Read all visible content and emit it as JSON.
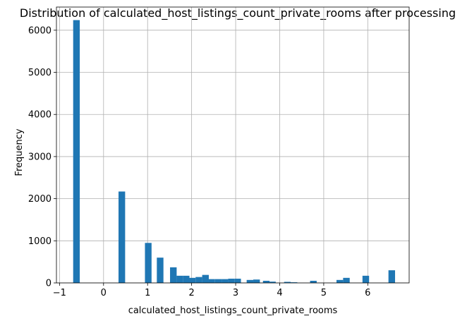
{
  "chart_data": {
    "type": "bar",
    "subtype": "histogram",
    "title": "Distribution of calculated_host_listings_count_private_rooms after processing",
    "xlabel": "calculated_host_listings_count_private_rooms",
    "ylabel": "Frequency",
    "xlim": [
      -1.07,
      6.94
    ],
    "ylim": [
      0,
      6550
    ],
    "grid": true,
    "x_ticks": [
      {
        "value": -1,
        "label": "−1"
      },
      {
        "value": 0,
        "label": "0"
      },
      {
        "value": 1,
        "label": "1"
      },
      {
        "value": 2,
        "label": "2"
      },
      {
        "value": 3,
        "label": "3"
      },
      {
        "value": 4,
        "label": "4"
      },
      {
        "value": 5,
        "label": "5"
      },
      {
        "value": 6,
        "label": "6"
      }
    ],
    "y_ticks": [
      {
        "value": 0,
        "label": "0"
      },
      {
        "value": 1000,
        "label": "1000"
      },
      {
        "value": 2000,
        "label": "2000"
      },
      {
        "value": 3000,
        "label": "3000"
      },
      {
        "value": 4000,
        "label": "4000"
      },
      {
        "value": 5000,
        "label": "5000"
      },
      {
        "value": 6000,
        "label": "6000"
      }
    ],
    "bar_color": "#1f77b4",
    "bins": [
      {
        "x0": -0.69,
        "x1": -0.54,
        "count": 6240
      },
      {
        "x0": 0.34,
        "x1": 0.49,
        "count": 2170
      },
      {
        "x0": 0.94,
        "x1": 1.09,
        "count": 950
      },
      {
        "x0": 1.21,
        "x1": 1.36,
        "count": 600
      },
      {
        "x0": 1.51,
        "x1": 1.66,
        "count": 370
      },
      {
        "x0": 1.66,
        "x1": 1.8,
        "count": 170
      },
      {
        "x0": 1.8,
        "x1": 1.95,
        "count": 170
      },
      {
        "x0": 1.95,
        "x1": 2.09,
        "count": 120
      },
      {
        "x0": 2.09,
        "x1": 2.24,
        "count": 140
      },
      {
        "x0": 2.24,
        "x1": 2.39,
        "count": 190
      },
      {
        "x0": 2.39,
        "x1": 2.53,
        "count": 90
      },
      {
        "x0": 2.53,
        "x1": 2.68,
        "count": 90
      },
      {
        "x0": 2.68,
        "x1": 2.83,
        "count": 90
      },
      {
        "x0": 2.83,
        "x1": 2.97,
        "count": 100
      },
      {
        "x0": 2.97,
        "x1": 3.12,
        "count": 100
      },
      {
        "x0": 3.25,
        "x1": 3.4,
        "count": 70
      },
      {
        "x0": 3.4,
        "x1": 3.55,
        "count": 80
      },
      {
        "x0": 3.62,
        "x1": 3.77,
        "count": 50
      },
      {
        "x0": 3.77,
        "x1": 3.91,
        "count": 30
      },
      {
        "x0": 4.1,
        "x1": 4.25,
        "count": 25
      },
      {
        "x0": 4.25,
        "x1": 4.4,
        "count": 15
      },
      {
        "x0": 4.69,
        "x1": 4.84,
        "count": 50
      },
      {
        "x0": 5.29,
        "x1": 5.44,
        "count": 70
      },
      {
        "x0": 5.44,
        "x1": 5.59,
        "count": 120
      },
      {
        "x0": 5.88,
        "x1": 6.03,
        "count": 170
      },
      {
        "x0": 6.47,
        "x1": 6.62,
        "count": 300
      }
    ]
  }
}
